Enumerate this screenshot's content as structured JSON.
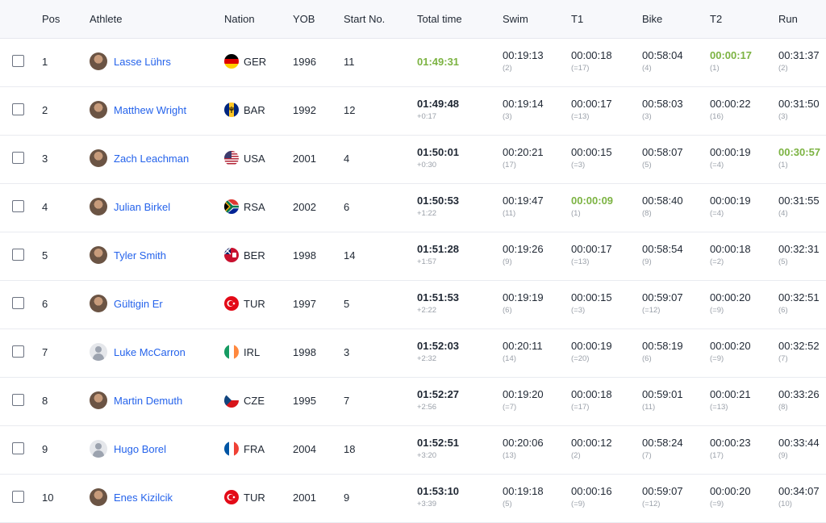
{
  "headers": [
    "Pos",
    "Athlete",
    "Nation",
    "YOB",
    "Start No.",
    "Total time",
    "Swim",
    "T1",
    "Bike",
    "T2",
    "Run"
  ],
  "rows": [
    {
      "pos": "1",
      "name": "Lasse Lührs",
      "nation": "GER",
      "yob": "1996",
      "start": "11",
      "total": "01:49:31",
      "gap": "",
      "swim": "00:19:13",
      "swim_r": "(2)",
      "t1": "00:00:18",
      "t1_r": "(=17)",
      "bike": "00:58:04",
      "bike_r": "(4)",
      "t2": "00:00:17",
      "t2_r": "(1)",
      "run": "00:31:37",
      "run_r": "(2)"
    },
    {
      "pos": "2",
      "name": "Matthew Wright",
      "nation": "BAR",
      "yob": "1992",
      "start": "12",
      "total": "01:49:48",
      "gap": "+0:17",
      "swim": "00:19:14",
      "swim_r": "(3)",
      "t1": "00:00:17",
      "t1_r": "(=13)",
      "bike": "00:58:03",
      "bike_r": "(3)",
      "t2": "00:00:22",
      "t2_r": "(16)",
      "run": "00:31:50",
      "run_r": "(3)"
    },
    {
      "pos": "3",
      "name": "Zach Leachman",
      "nation": "USA",
      "yob": "2001",
      "start": "4",
      "total": "01:50:01",
      "gap": "+0:30",
      "swim": "00:20:21",
      "swim_r": "(17)",
      "t1": "00:00:15",
      "t1_r": "(=3)",
      "bike": "00:58:07",
      "bike_r": "(5)",
      "t2": "00:00:19",
      "t2_r": "(=4)",
      "run": "00:30:57",
      "run_r": "(1)"
    },
    {
      "pos": "4",
      "name": "Julian Birkel",
      "nation": "RSA",
      "yob": "2002",
      "start": "6",
      "total": "01:50:53",
      "gap": "+1:22",
      "swim": "00:19:47",
      "swim_r": "(11)",
      "t1": "00:00:09",
      "t1_r": "(1)",
      "bike": "00:58:40",
      "bike_r": "(8)",
      "t2": "00:00:19",
      "t2_r": "(=4)",
      "run": "00:31:55",
      "run_r": "(4)"
    },
    {
      "pos": "5",
      "name": "Tyler Smith",
      "nation": "BER",
      "yob": "1998",
      "start": "14",
      "total": "01:51:28",
      "gap": "+1:57",
      "swim": "00:19:26",
      "swim_r": "(9)",
      "t1": "00:00:17",
      "t1_r": "(=13)",
      "bike": "00:58:54",
      "bike_r": "(9)",
      "t2": "00:00:18",
      "t2_r": "(=2)",
      "run": "00:32:31",
      "run_r": "(5)"
    },
    {
      "pos": "6",
      "name": "Gültigin Er",
      "nation": "TUR",
      "yob": "1997",
      "start": "5",
      "total": "01:51:53",
      "gap": "+2:22",
      "swim": "00:19:19",
      "swim_r": "(6)",
      "t1": "00:00:15",
      "t1_r": "(=3)",
      "bike": "00:59:07",
      "bike_r": "(=12)",
      "t2": "00:00:20",
      "t2_r": "(=9)",
      "run": "00:32:51",
      "run_r": "(6)"
    },
    {
      "pos": "7",
      "name": "Luke McCarron",
      "nation": "IRL",
      "yob": "1998",
      "start": "3",
      "total": "01:52:03",
      "gap": "+2:32",
      "swim": "00:20:11",
      "swim_r": "(14)",
      "t1": "00:00:19",
      "t1_r": "(=20)",
      "bike": "00:58:19",
      "bike_r": "(6)",
      "t2": "00:00:20",
      "t2_r": "(=9)",
      "run": "00:32:52",
      "run_r": "(7)"
    },
    {
      "pos": "8",
      "name": "Martin Demuth",
      "nation": "CZE",
      "yob": "1995",
      "start": "7",
      "total": "01:52:27",
      "gap": "+2:56",
      "swim": "00:19:20",
      "swim_r": "(=7)",
      "t1": "00:00:18",
      "t1_r": "(=17)",
      "bike": "00:59:01",
      "bike_r": "(11)",
      "t2": "00:00:21",
      "t2_r": "(=13)",
      "run": "00:33:26",
      "run_r": "(8)"
    },
    {
      "pos": "9",
      "name": "Hugo Borel",
      "nation": "FRA",
      "yob": "2004",
      "start": "18",
      "total": "01:52:51",
      "gap": "+3:20",
      "swim": "00:20:06",
      "swim_r": "(13)",
      "t1": "00:00:12",
      "t1_r": "(2)",
      "bike": "00:58:24",
      "bike_r": "(7)",
      "t2": "00:00:23",
      "t2_r": "(17)",
      "run": "00:33:44",
      "run_r": "(9)"
    },
    {
      "pos": "10",
      "name": "Enes Kizilcik",
      "nation": "TUR",
      "yob": "2001",
      "start": "9",
      "total": "01:53:10",
      "gap": "+3:39",
      "swim": "00:19:18",
      "swim_r": "(5)",
      "t1": "00:00:16",
      "t1_r": "(=9)",
      "bike": "00:59:07",
      "bike_r": "(=12)",
      "t2": "00:00:20",
      "t2_r": "(=9)",
      "run": "00:34:07",
      "run_r": "(10)"
    }
  ],
  "highlights": [
    {
      "row": 0,
      "field": "total"
    },
    {
      "row": 0,
      "field": "t2"
    },
    {
      "row": 2,
      "field": "run"
    },
    {
      "row": 3,
      "field": "t1"
    }
  ],
  "placeholder_avatars": [
    6,
    8
  ],
  "colors": {
    "link": "#2563eb",
    "best": "#7cb342",
    "header_bg": "#f7f8fb"
  }
}
